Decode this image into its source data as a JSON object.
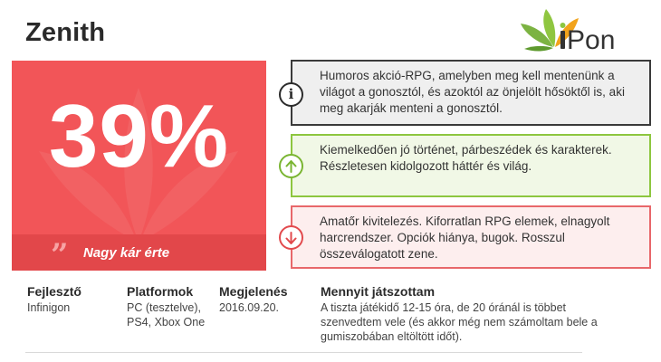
{
  "header": {
    "game_title": "Zenith",
    "logo_text": "iPon"
  },
  "score": {
    "value": "39%",
    "verdict": "Nagy kár érte",
    "quote_glyph": "”"
  },
  "boxes": {
    "summary": "Humoros akció-RPG, amelyben meg kell mentenünk a világot a gonosztól, és azoktól az önjelölt hősöktől is, aki meg akarják menteni a gonosztól.",
    "pros": "Kiemelkedően jó történet, párbeszédek és karakterek. Részletesen kidolgozott háttér és világ.",
    "cons": "Amatőr kivitelezés. Kiforratlan RPG elemek, elnagyolt harcrendszer. Opciók hiánya, bugok. Rosszul összeválogatott zene."
  },
  "meta": {
    "developer": {
      "label": "Fejlesztő",
      "value": "Infinigon"
    },
    "platforms": {
      "label": "Platformok",
      "value": "PC (tesztelve), PS4, Xbox One"
    },
    "release": {
      "label": "Megjelenés",
      "value": "2016.09.20."
    },
    "playtime": {
      "label": "Mennyit játszottam",
      "value": "A tiszta játékidő 12-15 óra, de 20 óránál is többet szenvedtem vele (és akkor még nem számoltam bele a gumiszobában eltöltött időt)."
    }
  },
  "colors": {
    "score_bg": "#f25558",
    "verdict_bar": "#e2474a",
    "pros_border": "#8dc63f",
    "cons_border": "#e8676a",
    "summary_border": "#3a3a3a",
    "logo_green": "#7cb342",
    "logo_orange": "#f2a31b"
  },
  "icons": {
    "summary": "info-icon",
    "pros": "arrow-up-icon",
    "cons": "arrow-down-icon",
    "verdict": "quote-icon"
  }
}
